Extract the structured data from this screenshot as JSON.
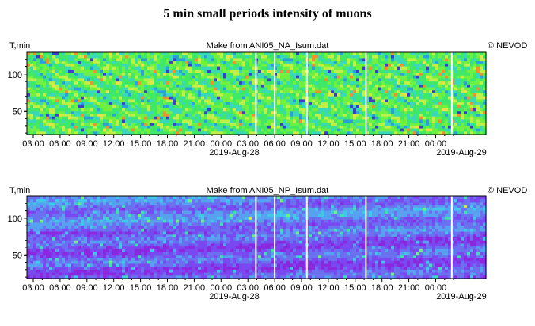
{
  "title": "5 min small periods intensity of muons",
  "credit": "© NEVOD",
  "chart_data": [
    {
      "type": "heatmap",
      "subtitle": "Make from ANI05_NA_Isum.dat",
      "ylabel": "T,min",
      "ylim": [
        18,
        130
      ],
      "yticks": [
        50,
        100
      ],
      "xticks": [
        "03:00",
        "06:00",
        "09:00",
        "12:00",
        "15:00",
        "18:00",
        "21:00",
        "00:00",
        "03:00",
        "06:00",
        "09:00",
        "12:00",
        "15:00",
        "18:00",
        "21:00",
        "00:00"
      ],
      "date_labels": [
        "2019-Aug-28",
        "2019-Aug-29"
      ],
      "gaps_after_tick": [
        8.3,
        9.0,
        10.2,
        12.4,
        15.6
      ],
      "palette": [
        "#3a40c8",
        "#2aa0d8",
        "#38d8b8",
        "#40e868",
        "#70f040",
        "#c0f048",
        "#f0e048",
        "#f09030"
      ]
    },
    {
      "type": "heatmap",
      "subtitle": "Make from ANI05_NP_Isum.dat",
      "ylabel": "T,min",
      "ylim": [
        18,
        130
      ],
      "yticks": [
        50,
        100
      ],
      "xticks": [
        "03:00",
        "06:00",
        "09:00",
        "12:00",
        "15:00",
        "18:00",
        "21:00",
        "00:00",
        "03:00",
        "06:00",
        "09:00",
        "12:00",
        "15:00",
        "18:00",
        "21:00",
        "00:00"
      ],
      "date_labels": [
        "2019-Aug-28",
        "2019-Aug-29"
      ],
      "gaps_after_tick": [
        8.3,
        9.0,
        10.2,
        12.4,
        15.6
      ],
      "palette": [
        "#8a28e0",
        "#7a48f0",
        "#6a70f0",
        "#58a0f0",
        "#40c8e8",
        "#40e0b0",
        "#70f080",
        "#e0f040"
      ]
    }
  ]
}
